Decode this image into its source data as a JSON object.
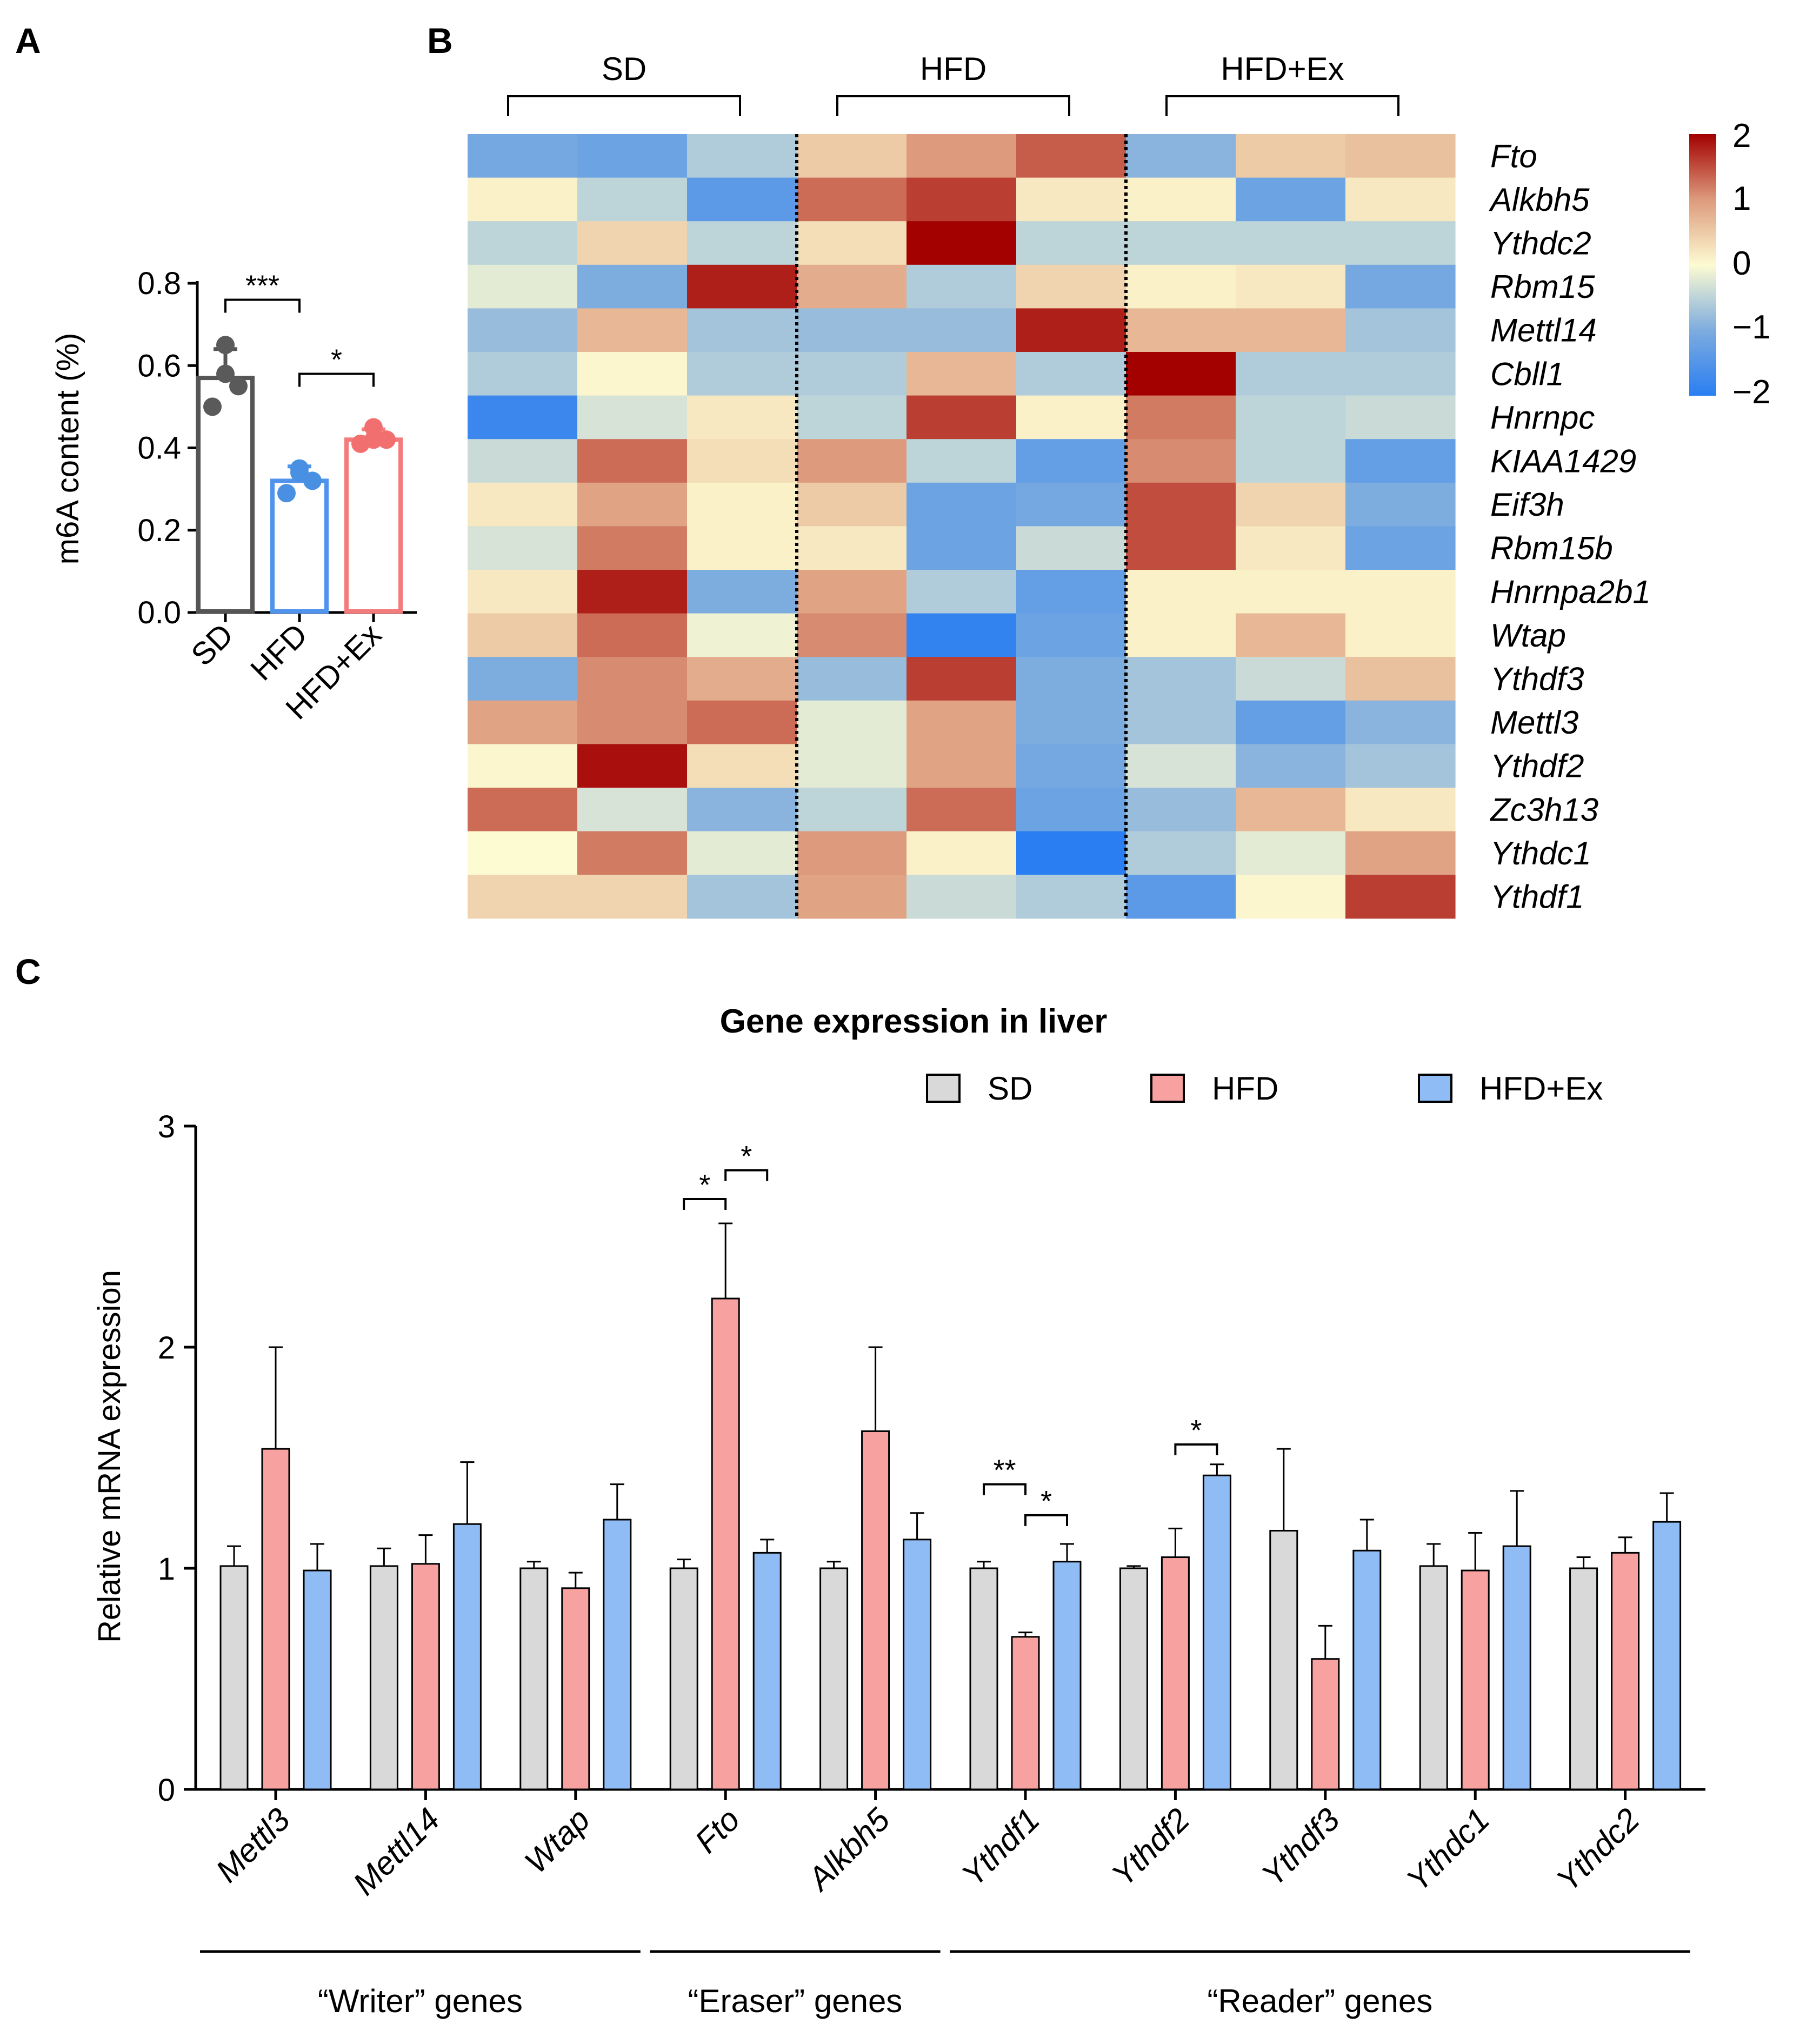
{
  "panels": {
    "a": "A",
    "b": "B",
    "c": "C"
  },
  "colors": {
    "SD": "#d9d9d9",
    "HFD": "#f7a1a1",
    "HFD+Ex": "#8fbcf4",
    "A_SD": "#555555",
    "A_HFD": "#4f93ec",
    "A_HFDEx": "#f47b7b",
    "A_SD_dot": "#5a5a5a",
    "A_HFD_dot": "#4a90e2",
    "A_HFDEx_dot": "#f26f6f"
  },
  "chart_data": [
    {
      "id": "A",
      "type": "bar",
      "ylabel": "m6A content (%)",
      "ylim": [
        0,
        0.8
      ],
      "yticks": [
        "0.0",
        "0.2",
        "0.4",
        "0.6",
        "0.8"
      ],
      "categories": [
        "SD",
        "HFD",
        "HFD+Ex"
      ],
      "values": [
        0.57,
        0.32,
        0.42
      ],
      "errors": [
        0.07,
        0.035,
        0.025
      ],
      "points": [
        [
          0.65,
          0.55,
          0.5,
          0.58
        ],
        [
          0.35,
          0.32,
          0.29,
          0.34
        ],
        [
          0.45,
          0.42,
          0.41,
          0.42
        ]
      ],
      "significance": [
        {
          "from": 0,
          "to": 1,
          "label": "***"
        },
        {
          "from": 1,
          "to": 2,
          "label": "*"
        }
      ]
    },
    {
      "id": "B",
      "type": "heatmap",
      "group_labels": [
        "SD",
        "HFD",
        "HFD+Ex"
      ],
      "genes": [
        "Fto",
        "Alkbh5",
        "Ythdc2",
        "Rbm15",
        "Mettl14",
        "Cbll1",
        "Hnrnpc",
        "KIAA1429",
        "Eif3h",
        "Rbm15b",
        "Hnrnpa2b1",
        "Wtap",
        "Ythdf3",
        "Mettl3",
        "Ythdf2",
        "Zc3h13",
        "Ythdc1",
        "Ythdf1"
      ],
      "colorbar": {
        "range": [
          -2,
          2
        ],
        "ticks": [
          "2",
          "1",
          "0",
          "−1",
          "−2"
        ]
      },
      "matrix": [
        [
          -1.1,
          -1.2,
          -0.6,
          0.5,
          1.0,
          1.4,
          -0.9,
          0.5,
          0.6
        ],
        [
          0.1,
          -0.5,
          -1.4,
          1.3,
          1.6,
          0.2,
          0.1,
          -1.2,
          0.2
        ],
        [
          -0.5,
          0.4,
          -0.5,
          0.3,
          2.0,
          -0.5,
          -0.5,
          -0.5,
          -0.5
        ],
        [
          -0.2,
          -1.0,
          1.8,
          0.8,
          -0.6,
          0.4,
          0.1,
          0.2,
          -1.1
        ],
        [
          -0.8,
          0.7,
          -0.7,
          -0.8,
          -0.8,
          1.8,
          0.7,
          0.7,
          -0.7
        ],
        [
          -0.6,
          0.05,
          -0.6,
          -0.6,
          0.7,
          -0.6,
          2.0,
          -0.6,
          -0.6
        ],
        [
          -1.8,
          -0.3,
          0.2,
          -0.5,
          1.6,
          0.1,
          1.2,
          -0.5,
          -0.4
        ],
        [
          -0.4,
          1.3,
          0.3,
          1.0,
          -0.5,
          -1.3,
          1.1,
          -0.5,
          -1.3
        ],
        [
          0.2,
          0.9,
          0.1,
          0.5,
          -1.2,
          -1.1,
          1.5,
          0.4,
          -1.0
        ],
        [
          -0.3,
          1.2,
          0.1,
          0.2,
          -1.2,
          -0.4,
          1.5,
          0.2,
          -1.2
        ],
        [
          0.2,
          1.8,
          -1.0,
          0.9,
          -0.6,
          -1.3,
          0.1,
          0.1,
          0.1
        ],
        [
          0.5,
          1.3,
          -0.1,
          1.1,
          -1.9,
          -1.2,
          0.1,
          0.7,
          0.1
        ],
        [
          -1.0,
          1.1,
          0.8,
          -0.8,
          1.6,
          -1.0,
          -0.7,
          -0.4,
          0.6
        ],
        [
          0.9,
          1.1,
          1.3,
          -0.2,
          0.9,
          -1.0,
          -0.7,
          -1.3,
          -0.9
        ],
        [
          0.05,
          1.9,
          0.3,
          -0.2,
          0.9,
          -1.1,
          -0.3,
          -0.9,
          -0.7
        ],
        [
          1.3,
          -0.3,
          -0.9,
          -0.5,
          1.3,
          -1.2,
          -0.8,
          0.7,
          0.2
        ],
        [
          0.0,
          1.2,
          -0.2,
          1.0,
          0.1,
          -2.0,
          -0.6,
          -0.2,
          0.9
        ],
        [
          0.4,
          0.4,
          -0.7,
          0.9,
          -0.4,
          -0.6,
          -1.4,
          0.05,
          1.6
        ]
      ]
    },
    {
      "id": "C",
      "type": "bar",
      "title": "Gene expression in liver",
      "ylabel": "Relative mRNA expression",
      "ylim": [
        0,
        3
      ],
      "yticks": [
        "0",
        "1",
        "2",
        "3"
      ],
      "categories": [
        "Mettl3",
        "Mettl14",
        "Wtap",
        "Fto",
        "Alkbh5",
        "Ythdf1",
        "Ythdf2",
        "Ythdf3",
        "Ythdc1",
        "Ythdc2"
      ],
      "series": [
        {
          "name": "SD",
          "values": [
            1.01,
            1.01,
            1.0,
            1.0,
            1.0,
            1.0,
            1.0,
            1.17,
            1.01,
            1.0
          ],
          "errors": [
            0.09,
            0.08,
            0.03,
            0.04,
            0.03,
            0.03,
            0.01,
            0.37,
            0.1,
            0.05
          ]
        },
        {
          "name": "HFD",
          "values": [
            1.54,
            1.02,
            0.91,
            2.22,
            1.62,
            0.69,
            1.05,
            0.59,
            0.99,
            1.07
          ],
          "errors": [
            0.46,
            0.13,
            0.07,
            0.34,
            0.38,
            0.02,
            0.13,
            0.15,
            0.17,
            0.07
          ]
        },
        {
          "name": "HFD+Ex",
          "values": [
            0.99,
            1.2,
            1.22,
            1.07,
            1.13,
            1.03,
            1.42,
            1.08,
            1.1,
            1.21
          ],
          "errors": [
            0.12,
            0.28,
            0.16,
            0.06,
            0.12,
            0.08,
            0.05,
            0.14,
            0.25,
            0.13
          ]
        }
      ],
      "significance": [
        {
          "gene": 3,
          "from": 0,
          "to": 1,
          "label": "*"
        },
        {
          "gene": 3,
          "from": 1,
          "to": 2,
          "label": "*"
        },
        {
          "gene": 5,
          "from": 0,
          "to": 1,
          "label": "**"
        },
        {
          "gene": 5,
          "from": 1,
          "to": 2,
          "label": "*"
        },
        {
          "gene": 6,
          "from": 1,
          "to": 2,
          "label": "*"
        }
      ],
      "gene_groups": [
        {
          "label": "“Writer” genes",
          "from": 0,
          "to": 2
        },
        {
          "label": "“Eraser” genes",
          "from": 3,
          "to": 4
        },
        {
          "label": "“Reader” genes",
          "from": 5,
          "to": 9
        }
      ]
    }
  ]
}
